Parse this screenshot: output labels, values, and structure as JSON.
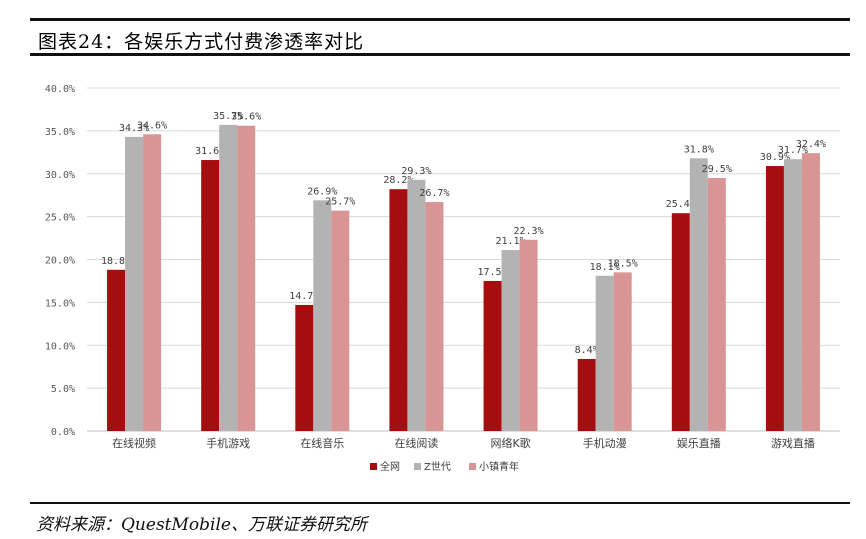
{
  "header": {
    "title": "图表24：各娱乐方式付费渗透率对比"
  },
  "footer": {
    "source": "资料来源：QuestMobile、万联证券研究所"
  },
  "colors": {
    "series1": "#a50e0e",
    "series2": "#b3b3b3",
    "series3": "#d99494",
    "grid": "#d9d9d9",
    "axis": "#bfbfbf"
  },
  "chart_data": {
    "type": "bar",
    "title": "",
    "xlabel": "",
    "ylabel": "",
    "ylim": [
      0,
      40
    ],
    "yticks": [
      "0.0%",
      "5.0%",
      "10.0%",
      "15.0%",
      "20.0%",
      "25.0%",
      "30.0%",
      "35.0%",
      "40.0%"
    ],
    "grid": true,
    "legend_position": "bottom",
    "categories": [
      "在线视频",
      "手机游戏",
      "在线音乐",
      "在线阅读",
      "网络K歌",
      "手机动漫",
      "娱乐直播",
      "游戏直播"
    ],
    "series": [
      {
        "name": "全网",
        "values": [
          18.8,
          31.6,
          14.7,
          28.2,
          17.5,
          8.4,
          25.4,
          30.9
        ],
        "labels": [
          "18.8%",
          "31.6%",
          "14.7%",
          "28.2%",
          "17.5%",
          "8.4%",
          "25.4%",
          "30.9%"
        ]
      },
      {
        "name": "Z世代",
        "values": [
          34.3,
          35.7,
          26.9,
          29.3,
          21.1,
          18.1,
          31.8,
          31.7
        ],
        "labels": [
          "34.3%",
          "35.7%",
          "26.9%",
          "29.3%",
          "21.1%",
          "18.1%",
          "31.8%",
          "31.7%"
        ]
      },
      {
        "name": "小镇青年",
        "values": [
          34.6,
          35.6,
          25.7,
          26.7,
          22.3,
          18.5,
          29.5,
          32.4
        ],
        "labels": [
          "34.6%",
          "35.6%",
          "25.7%",
          "26.7%",
          "22.3%",
          "18.5%",
          "29.5%",
          "32.4%"
        ]
      }
    ]
  }
}
